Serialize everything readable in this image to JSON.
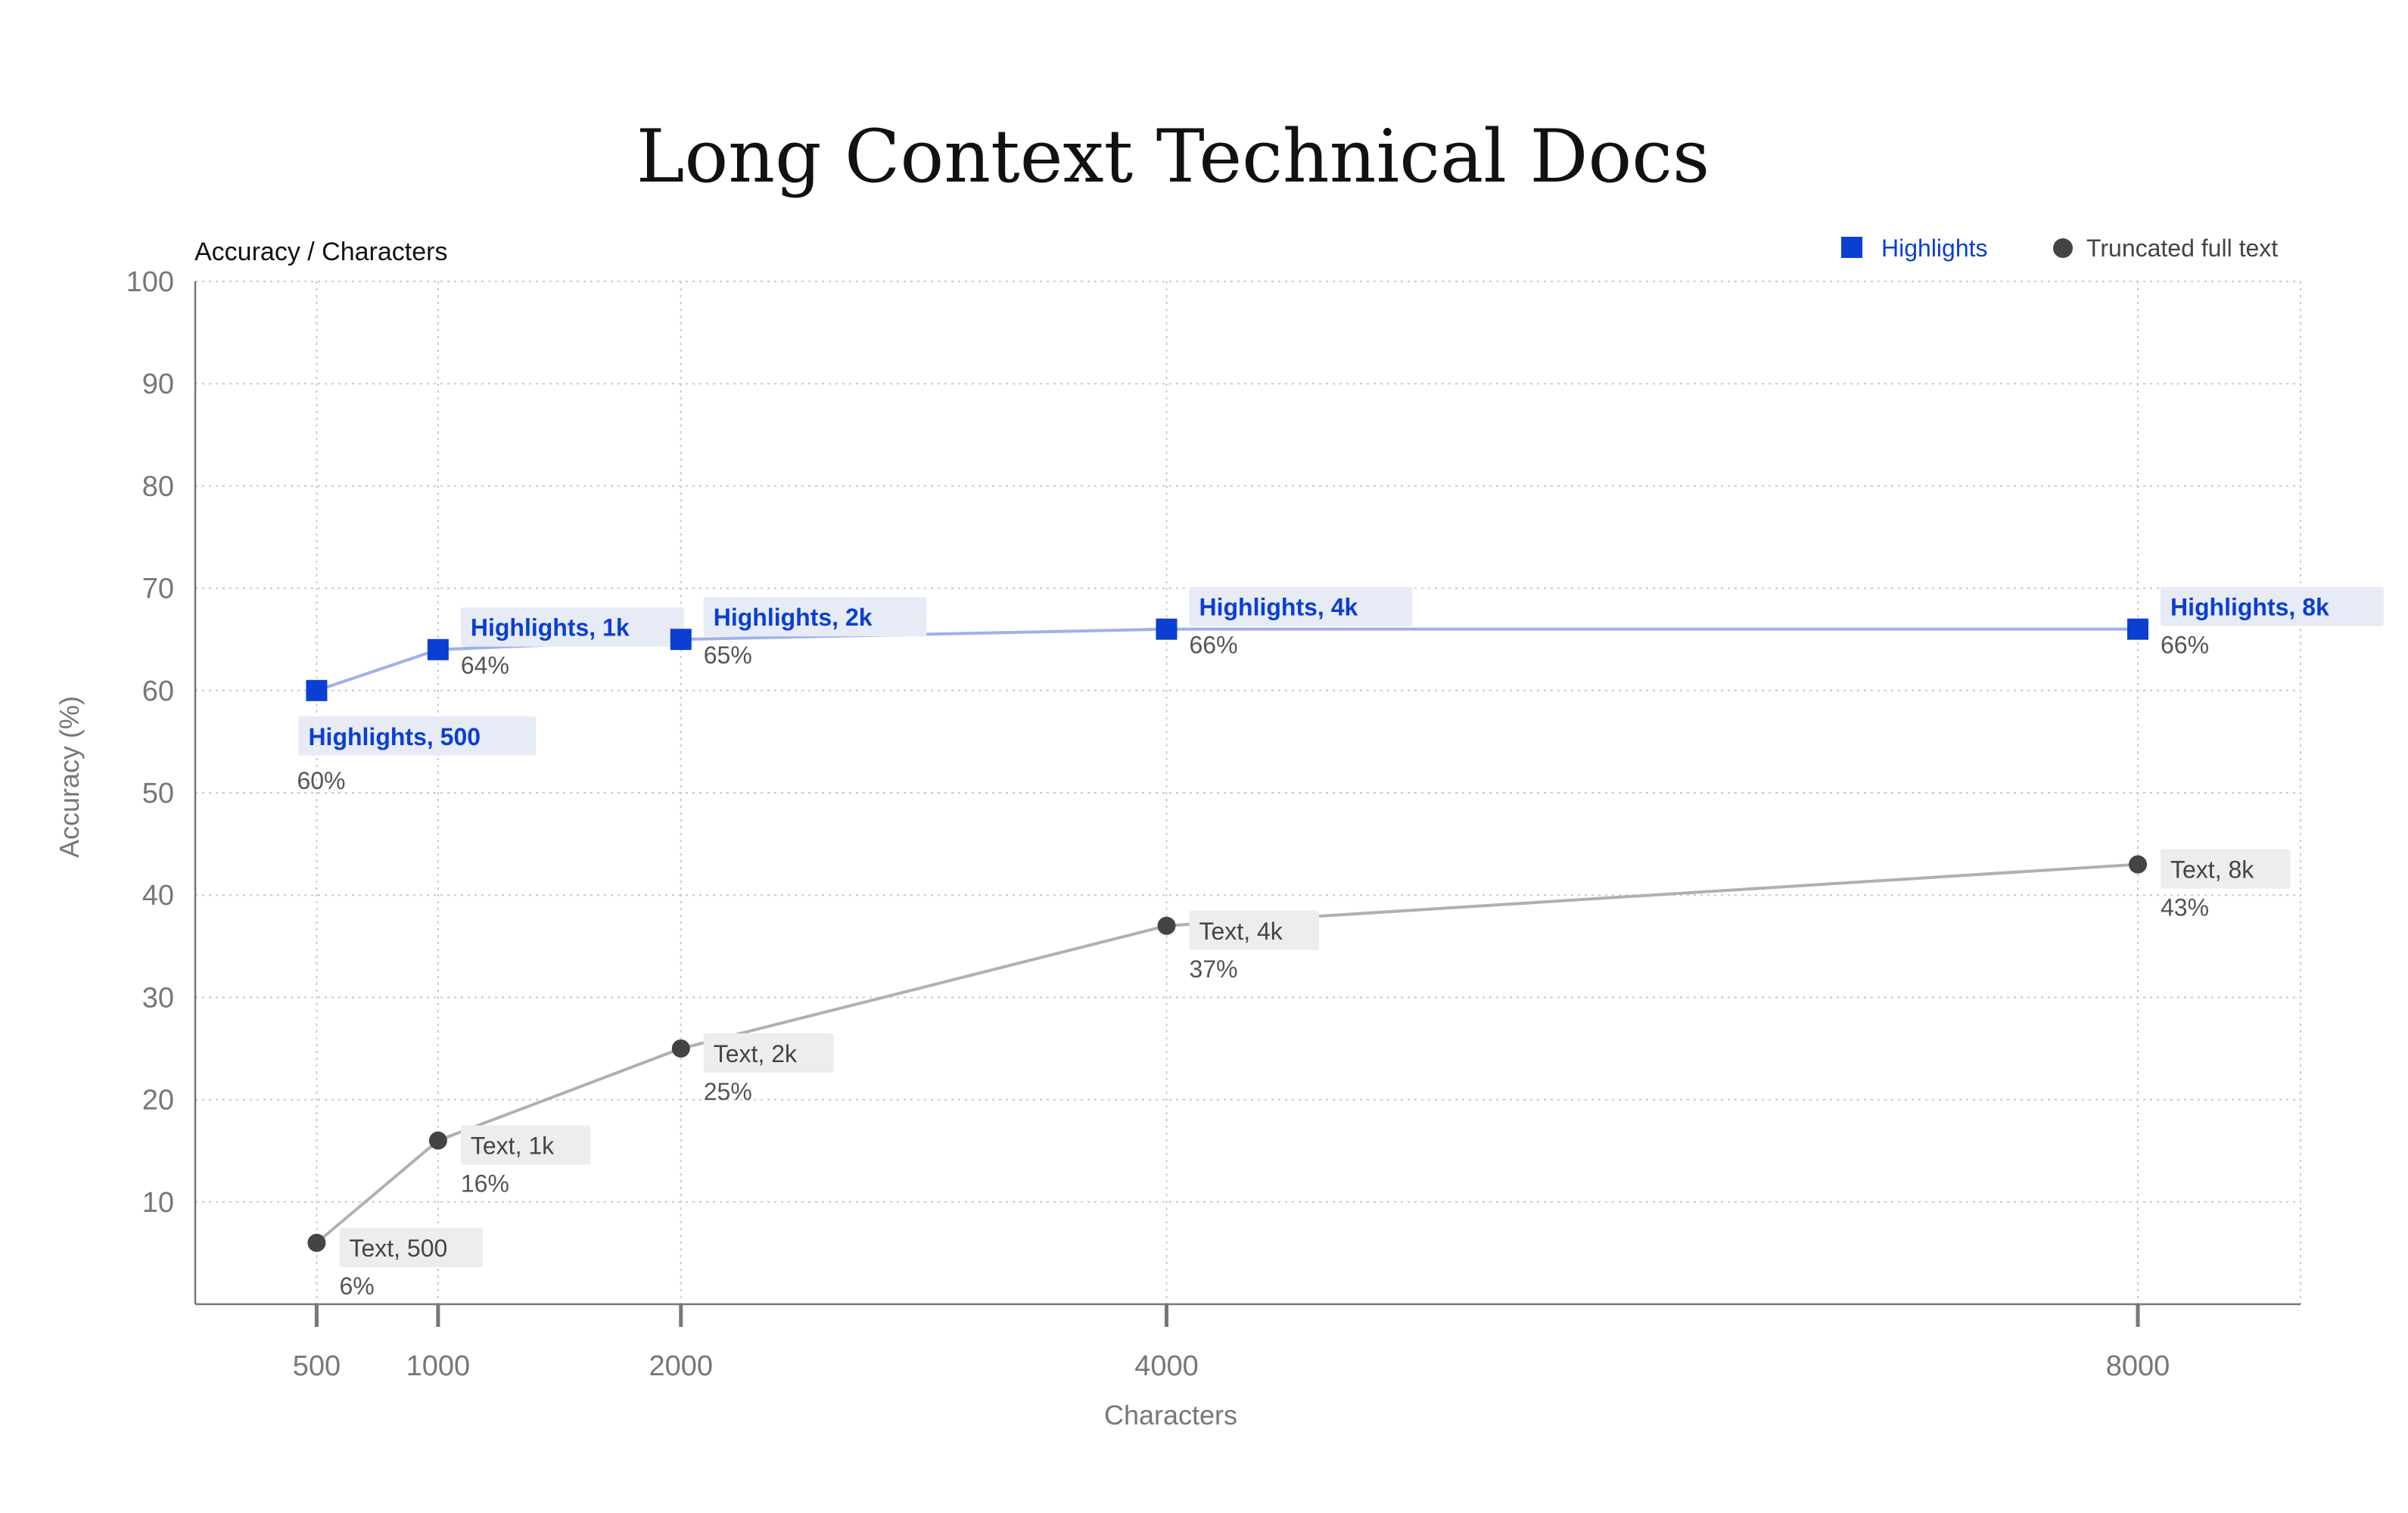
{
  "chart_data": {
    "type": "line",
    "title": "Long Context Technical Docs",
    "subtitle": "Accuracy / Characters",
    "xlabel": "Characters",
    "ylabel": "Accuracy (%)",
    "x": [
      500,
      1000,
      2000,
      4000,
      8000
    ],
    "x_tick_labels": [
      "500",
      "1000",
      "2000",
      "4000",
      "8000"
    ],
    "xlim": [
      0,
      8670
    ],
    "ylim": [
      0,
      100
    ],
    "y_ticks": [
      10,
      20,
      30,
      40,
      50,
      60,
      70,
      80,
      90,
      100
    ],
    "grid": true,
    "legend_position": "top-right",
    "series": [
      {
        "name": "Highlights",
        "color": "#0b3fd1",
        "line_color": "#9fb1ea",
        "marker": "square",
        "values": [
          60,
          64,
          65,
          66,
          66
        ],
        "point_labels": [
          "Highlights, 500",
          "Highlights, 1k",
          "Highlights, 2k",
          "Highlights, 4k",
          "Highlights, 8k"
        ],
        "value_labels": [
          "60%",
          "64%",
          "65%",
          "66%",
          "66%"
        ]
      },
      {
        "name": "Truncated full text",
        "color": "#444444",
        "line_color": "#b0b0b0",
        "marker": "circle",
        "values": [
          6,
          16,
          25,
          37,
          43
        ],
        "point_labels": [
          "Text, 500",
          "Text, 1k",
          "Text, 2k",
          "Text, 4k",
          "Text, 8k"
        ],
        "value_labels": [
          "6%",
          "16%",
          "25%",
          "37%",
          "43%"
        ]
      }
    ]
  }
}
